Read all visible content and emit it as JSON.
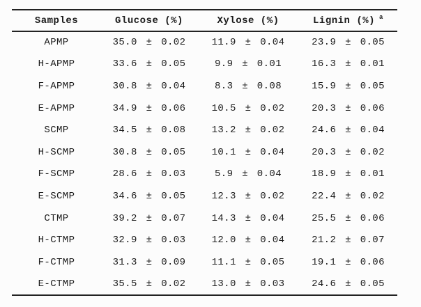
{
  "page": {
    "background": "#fcfcfc",
    "text_color": "#1b1b1b",
    "rule_color": "#232323"
  },
  "table": {
    "headers": [
      {
        "label": "Samples"
      },
      {
        "label": "Glucose (%)"
      },
      {
        "label": "Xylose (%)"
      },
      {
        "label": "Lignin (%)",
        "superscript": "a"
      }
    ],
    "rows": [
      {
        "sample": "APMP",
        "glucose": "35.0 ± 0.02",
        "xylose": "11.9 ± 0.04",
        "lignin": "23.9 ± 0.05"
      },
      {
        "sample": "H-APMP",
        "glucose": "33.6 ± 0.05",
        "xylose": "9.9 ± 0.01",
        "lignin": "16.3 ± 0.01"
      },
      {
        "sample": "F-APMP",
        "glucose": "30.8 ± 0.04",
        "xylose": "8.3 ± 0.08",
        "lignin": "15.9 ± 0.05"
      },
      {
        "sample": "E-APMP",
        "glucose": "34.9 ± 0.06",
        "xylose": "10.5 ± 0.02",
        "lignin": "20.3 ± 0.06"
      },
      {
        "sample": "SCMP",
        "glucose": "34.5 ± 0.08",
        "xylose": "13.2 ± 0.02",
        "lignin": "24.6 ± 0.04"
      },
      {
        "sample": "H-SCMP",
        "glucose": "30.8 ± 0.05",
        "xylose": "10.1 ± 0.04",
        "lignin": "20.3 ± 0.02"
      },
      {
        "sample": "F-SCMP",
        "glucose": "28.6 ± 0.03",
        "xylose": "5.9 ± 0.04",
        "lignin": "18.9 ± 0.01"
      },
      {
        "sample": "E-SCMP",
        "glucose": "34.6 ± 0.05",
        "xylose": "12.3 ± 0.02",
        "lignin": "22.4 ± 0.02"
      },
      {
        "sample": "CTMP",
        "glucose": "39.2 ± 0.07",
        "xylose": "14.3 ± 0.04",
        "lignin": "25.5 ± 0.06"
      },
      {
        "sample": "H-CTMP",
        "glucose": "32.9 ± 0.03",
        "xylose": "12.0 ± 0.04",
        "lignin": "21.2 ± 0.07"
      },
      {
        "sample": "F-CTMP",
        "glucose": "31.3 ± 0.09",
        "xylose": "11.1 ± 0.05",
        "lignin": "19.1 ± 0.06"
      },
      {
        "sample": "E-CTMP",
        "glucose": "35.5 ± 0.02",
        "xylose": "13.0 ± 0.03",
        "lignin": "24.6 ± 0.05"
      }
    ]
  }
}
